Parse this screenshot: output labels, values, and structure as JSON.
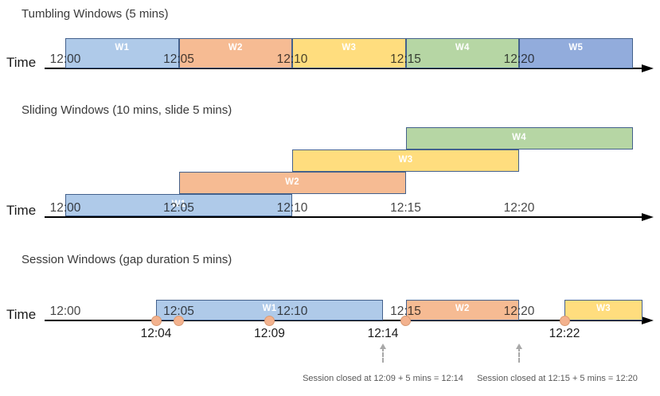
{
  "figure": {
    "colors": {
      "blue": "#AFCAE9",
      "blue2": "#92ACDC",
      "orange": "#F6BB93",
      "yellow": "#FFDD7E",
      "green": "#B6D6A4",
      "bar_border": "#44618C",
      "event_fill": "#F3B28E",
      "event_border": "#D89A74",
      "timeline": "#000000",
      "annotation_text": "#595959",
      "dashed_arrow": "#A8A8A8"
    },
    "sections": [
      {
        "id": "tumbling",
        "title": "Tumbling Windows (5 mins)",
        "axis_label": "Time",
        "windows": [
          {
            "label": "W1",
            "start_min": 0,
            "end_min": 5,
            "color": "blue"
          },
          {
            "label": "W2",
            "start_min": 5,
            "end_min": 10,
            "color": "orange"
          },
          {
            "label": "W3",
            "start_min": 10,
            "end_min": 15,
            "color": "yellow"
          },
          {
            "label": "W4",
            "start_min": 15,
            "end_min": 20,
            "color": "green"
          },
          {
            "label": "W5",
            "start_min": 20,
            "end_min": 25,
            "color": "blue2"
          }
        ],
        "ticks": [
          {
            "label": "12:00",
            "min": 0
          },
          {
            "label": "12:05",
            "min": 5
          },
          {
            "label": "12:10",
            "min": 10
          },
          {
            "label": "12:15",
            "min": 15
          },
          {
            "label": "12:20",
            "min": 20
          }
        ]
      },
      {
        "id": "sliding",
        "title": "Sliding Windows (10 mins, slide 5 mins)",
        "axis_label": "Time",
        "windows": [
          {
            "label": "W1",
            "start_min": 0,
            "end_min": 10,
            "color": "blue",
            "row": 0
          },
          {
            "label": "W2",
            "start_min": 5,
            "end_min": 15,
            "color": "orange",
            "row": 1
          },
          {
            "label": "W3",
            "start_min": 10,
            "end_min": 20,
            "color": "yellow",
            "row": 2
          },
          {
            "label": "W4",
            "start_min": 15,
            "end_min": 25,
            "color": "green",
            "row": 3
          }
        ],
        "ticks": [
          {
            "label": "12:00",
            "min": 0
          },
          {
            "label": "12:05",
            "min": 5
          },
          {
            "label": "12:10",
            "min": 10
          },
          {
            "label": "12:15",
            "min": 15
          },
          {
            "label": "12:20",
            "min": 20
          }
        ]
      },
      {
        "id": "session",
        "title": "Session Windows (gap duration 5 mins)",
        "axis_label": "Time",
        "windows": [
          {
            "label": "W1",
            "start_min": 4,
            "end_min": 14,
            "color": "blue"
          },
          {
            "label": "W2",
            "start_min": 15,
            "end_min": 20,
            "color": "orange"
          },
          {
            "label": "W3",
            "start_min": 22,
            "end_min": 27,
            "color": "yellow"
          }
        ],
        "ticks": [
          {
            "label": "12:00",
            "min": 0
          },
          {
            "label": "12:05",
            "min": 5
          },
          {
            "label": "12:10",
            "min": 10
          },
          {
            "label": "12:15",
            "min": 15
          },
          {
            "label": "12:20",
            "min": 20
          }
        ],
        "events": [
          {
            "min": 4
          },
          {
            "min": 5
          },
          {
            "min": 9
          },
          {
            "min": 15
          },
          {
            "min": 22
          }
        ],
        "event_labels": [
          {
            "label": "12:04",
            "min": 4
          },
          {
            "label": "12:09",
            "min": 9
          },
          {
            "label": "12:14",
            "min": 14
          },
          {
            "label": "12:22",
            "min": 22
          }
        ],
        "annotations": [
          {
            "text": "Session closed at 12:09 + 5 mins = 12:14",
            "at_min": 14
          },
          {
            "text": "Session closed at 12:15 + 5 mins = 12:20",
            "at_min": 20
          }
        ]
      }
    ]
  }
}
